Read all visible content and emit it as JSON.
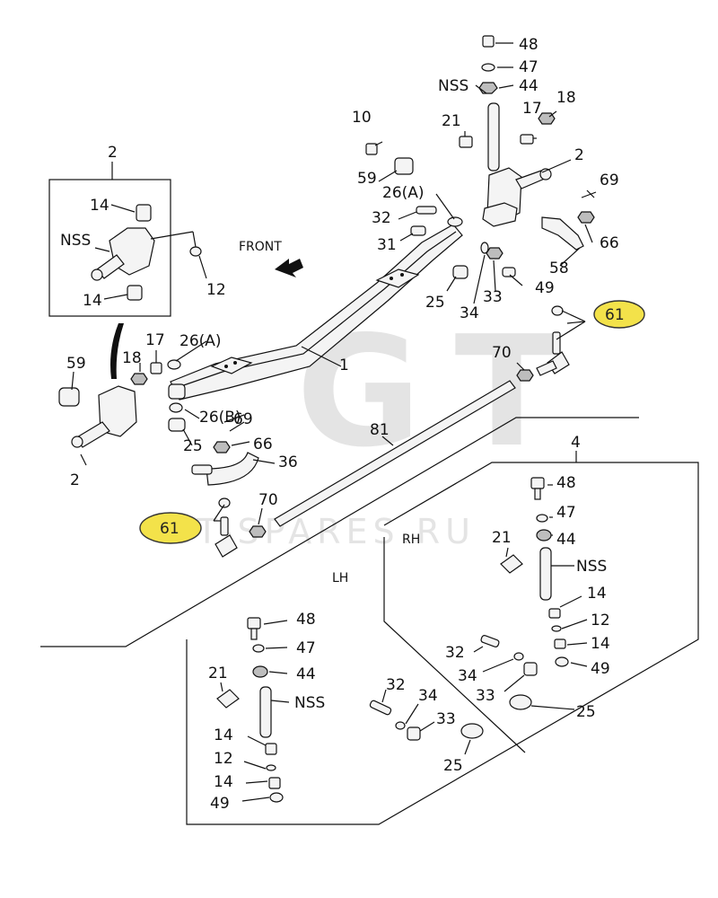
{
  "diagram": {
    "front_label": "FRONT",
    "watermark_big": "GT",
    "watermark_url": "GT-SPARES.RU",
    "side_labels": {
      "rh": "RH",
      "lh": "LH"
    },
    "group_labels": {
      "axle_end_kit": "2",
      "knuckle_kit": "4"
    },
    "highlight_ref": "61",
    "main_labels": {
      "axle": "1",
      "knuckle_right": "2",
      "knuckle_left": "2",
      "bolt_10": "10",
      "spacer_59_right": "59",
      "spacer_59_left": "59",
      "shim_26a_right": "26(A)",
      "shim_26a_left": "26(A)",
      "shim_26b": "26(B)",
      "bolt_32": "32",
      "nipple_31": "31",
      "bushing_25_right": "25",
      "bushing_25_left": "25",
      "washer_34": "34",
      "nut_33": "33",
      "washer_49": "49",
      "arm_58": "58",
      "nut_66_right": "66",
      "nut_66_left": "66",
      "pin_69_right": "69",
      "pin_69_left": "69",
      "nipple_21": "21",
      "bolt_17_right": "17",
      "bolt_17_left": "17",
      "nut_18_right": "18",
      "nut_18_left": "18",
      "bolt_48": "48",
      "washer_47": "47",
      "nut_44": "44",
      "nss_top": "NSS",
      "nut_70_right": "70",
      "nut_70_left": "70",
      "tie_rod_81": "81",
      "arm_36": "36",
      "inset_14_top": "14",
      "inset_14_bottom": "14",
      "inset_nss": "NSS",
      "inset_12": "12"
    },
    "rh_parts": {
      "bolt_48": "48",
      "washer_47": "47",
      "nut_44": "44",
      "nipple_21": "21",
      "nss": "NSS",
      "bush_14_a": "14",
      "seal_12": "12",
      "bush_14_b": "14",
      "washer_49": "49",
      "bolt_32": "32",
      "washer_34": "34",
      "nut_33": "33",
      "bushing_25": "25"
    },
    "lh_parts": {
      "bolt_48": "48",
      "washer_47": "47",
      "nut_44": "44",
      "nipple_21": "21",
      "nss": "NSS",
      "bush_14_a": "14",
      "seal_12": "12",
      "bush_14_b": "14",
      "washer_49": "49",
      "bolt_32": "32",
      "washer_34": "34",
      "nut_33": "33",
      "bushing_25": "25"
    }
  }
}
